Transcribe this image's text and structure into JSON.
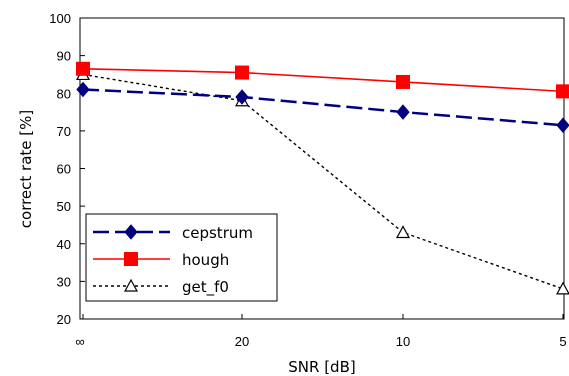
{
  "chart_data": {
    "type": "line",
    "categories": [
      "∞",
      "20",
      "10",
      "5"
    ],
    "xlabel": "SNR [dB]",
    "ylabel": "correct rate [%]",
    "ylim": [
      20,
      100
    ],
    "yticks": [
      20,
      30,
      40,
      50,
      60,
      70,
      80,
      90,
      100
    ],
    "grid": false,
    "legend_position": "bottom-left",
    "series": [
      {
        "name": "cepstrum",
        "values": [
          81,
          79,
          75,
          71.5
        ],
        "color": "#000080",
        "line": "long-dash",
        "marker": "diamond-filled"
      },
      {
        "name": "hough",
        "values": [
          86.5,
          85.5,
          83,
          80.5
        ],
        "color": "#ff0000",
        "line": "solid",
        "marker": "square-filled"
      },
      {
        "name": "get_f0",
        "values": [
          85,
          78,
          43,
          28
        ],
        "color": "#000000",
        "line": "dotted",
        "marker": "triangle-open"
      }
    ]
  }
}
